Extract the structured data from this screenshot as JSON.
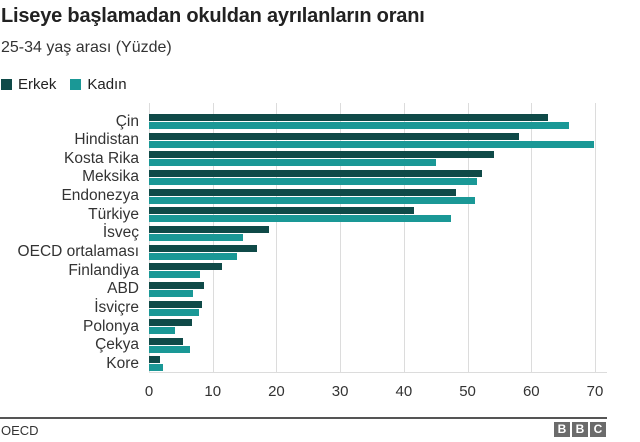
{
  "header": {
    "title": "Liseye başlamadan okuldan ayrılanların oranı",
    "subtitle": "25-34 yaş arası (Yüzde)"
  },
  "legend": [
    {
      "label": "Erkek",
      "color": "#0f4a48"
    },
    {
      "label": "Kadın",
      "color": "#1a9896"
    }
  ],
  "footer": {
    "source": "OECD",
    "logo": [
      "B",
      "B",
      "C"
    ]
  },
  "chart_data": {
    "type": "bar",
    "orientation": "horizontal",
    "title": "Liseye başlamadan okuldan ayrılanların oranı",
    "subtitle": "25-34 yaş arası (Yüzde)",
    "xlabel": "",
    "ylabel": "",
    "xlim": [
      0,
      70
    ],
    "x_ticks": [
      "0",
      "10",
      "20",
      "30",
      "40",
      "50",
      "60",
      "70"
    ],
    "grid": true,
    "legend_position": "top-left",
    "categories": [
      "Çin",
      "Hindistan",
      "Kosta Rika",
      "Meksika",
      "Endonezya",
      "Türkiye",
      "İsveç",
      "OECD ortalaması",
      "Finlandiya",
      "ABD",
      "İsviçre",
      "Polonya",
      "Çekya",
      "Kore"
    ],
    "series": [
      {
        "name": "Erkek",
        "color": "#0f4a48",
        "values": [
          62.6,
          58.1,
          54.2,
          52.3,
          48.2,
          41.6,
          18.9,
          17.0,
          11.4,
          8.6,
          8.3,
          6.7,
          5.4,
          1.7
        ]
      },
      {
        "name": "Kadın",
        "color": "#1a9896",
        "values": [
          65.9,
          69.9,
          45.0,
          51.5,
          51.2,
          47.4,
          14.8,
          13.8,
          8.0,
          6.9,
          7.8,
          4.1,
          6.4,
          2.2
        ]
      }
    ]
  }
}
